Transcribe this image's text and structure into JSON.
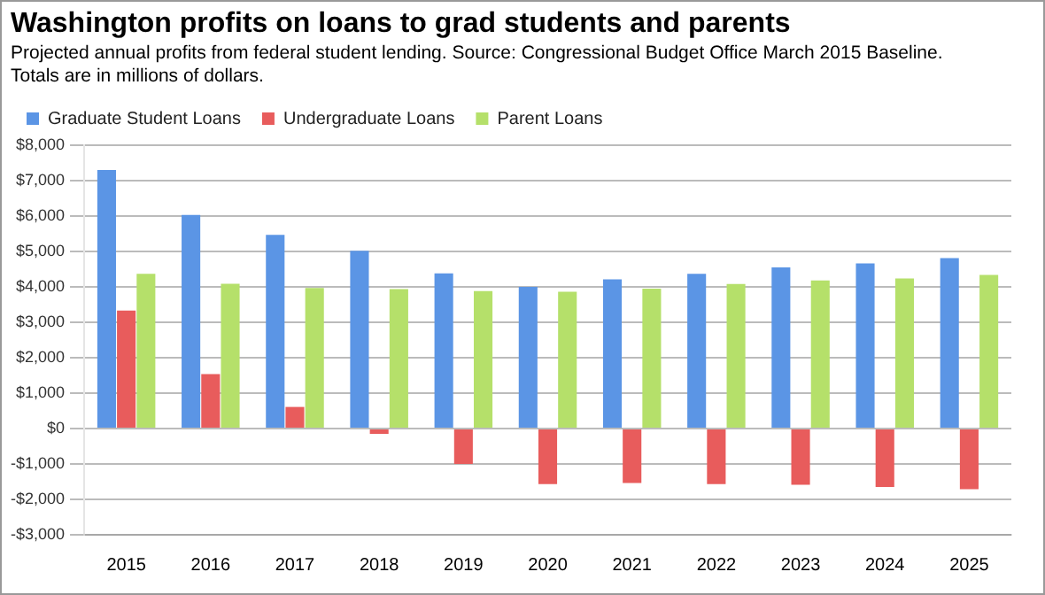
{
  "chart_data": {
    "type": "bar",
    "title": "Washington profits on loans to grad students and parents",
    "subtitle": "Projected annual profits from federal student lending. Source: Congressional Budget Office March 2015 Baseline. Totals are in millions of dollars.",
    "categories": [
      "2015",
      "2016",
      "2017",
      "2018",
      "2019",
      "2020",
      "2021",
      "2022",
      "2023",
      "2024",
      "2025"
    ],
    "series": [
      {
        "name": "Graduate Student Loans",
        "color": "#5b95e5",
        "values": [
          7300,
          6030,
          5470,
          5020,
          4380,
          4000,
          4210,
          4370,
          4550,
          4660,
          4810
        ]
      },
      {
        "name": "Undergraduate Loans",
        "color": "#e85c5c",
        "values": [
          3330,
          1540,
          610,
          -150,
          -1000,
          -1570,
          -1540,
          -1570,
          -1590,
          -1650,
          -1710
        ]
      },
      {
        "name": "Parent Loans",
        "color": "#b5e06a",
        "values": [
          4370,
          4090,
          3970,
          3940,
          3880,
          3860,
          3950,
          4080,
          4180,
          4240,
          4340
        ]
      }
    ],
    "ylim": [
      -3000,
      8000
    ],
    "yticks": [
      {
        "value": -3000,
        "label": "-$3,000"
      },
      {
        "value": -2000,
        "label": "-$2,000"
      },
      {
        "value": -1000,
        "label": "-$1,000"
      },
      {
        "value": 0,
        "label": "$0"
      },
      {
        "value": 1000,
        "label": "$1,000"
      },
      {
        "value": 2000,
        "label": "$2,000"
      },
      {
        "value": 3000,
        "label": "$3,000"
      },
      {
        "value": 4000,
        "label": "$4,000"
      },
      {
        "value": 5000,
        "label": "$5,000"
      },
      {
        "value": 6000,
        "label": "$6,000"
      },
      {
        "value": 7000,
        "label": "$7,000"
      },
      {
        "value": 8000,
        "label": "$8,000"
      }
    ],
    "grid": "y",
    "legend": "top left"
  }
}
